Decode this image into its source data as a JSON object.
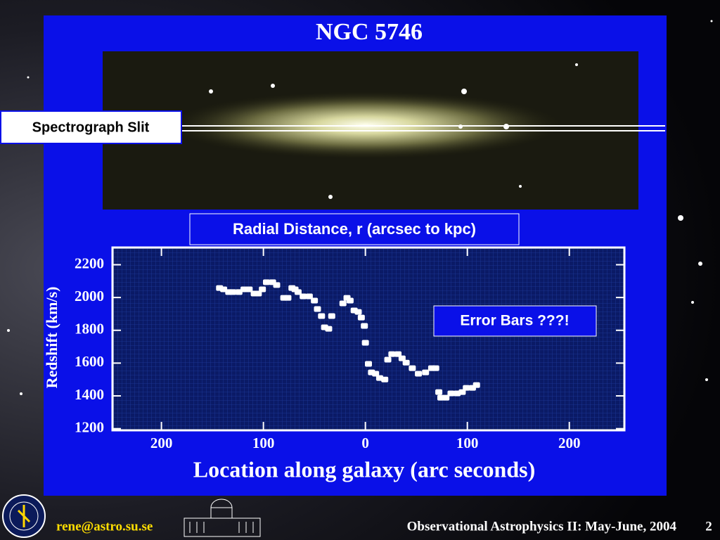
{
  "slide": {
    "title": "NGC 5746",
    "slit_label": "Spectrograph Slit",
    "radial_label": "Radial Distance, r (arcsec to kpc)",
    "annotation": "Error Bars ???!",
    "footer": {
      "email": "rene@astro.su.se",
      "course": "Observational Astrophysics II: May-June, 2004",
      "page": "2"
    }
  },
  "chart_data": {
    "type": "scatter",
    "xlabel": "Location along galaxy (arc seconds)",
    "ylabel": "Redshift (km/s)",
    "color": "#ffffff",
    "x": [
      -143,
      -139,
      -134,
      -130,
      -124,
      -119,
      -114,
      -109,
      -105,
      -101,
      -97,
      -91,
      -87,
      -80,
      -76,
      -72,
      -69,
      -66,
      -61,
      -55,
      -50,
      -47,
      -43,
      -40,
      -36,
      -33,
      -22,
      -18,
      -15,
      -11,
      -7,
      -4,
      -1,
      0,
      3,
      6,
      10,
      14,
      19,
      22,
      26,
      32,
      36,
      40,
      46,
      52,
      59,
      65,
      69,
      72,
      74,
      79,
      84,
      90,
      95,
      99,
      105,
      109
    ],
    "values": [
      2058,
      2050,
      2033,
      2033,
      2033,
      2050,
      2050,
      2024,
      2024,
      2050,
      2093,
      2093,
      2076,
      1998,
      1998,
      2058,
      2050,
      2033,
      2007,
      2007,
      1981,
      1930,
      1887,
      1818,
      1809,
      1887,
      1964,
      1998,
      1981,
      1921,
      1912,
      1878,
      1827,
      1724,
      1595,
      1543,
      1535,
      1509,
      1500,
      1621,
      1655,
      1655,
      1629,
      1603,
      1569,
      1535,
      1543,
      1569,
      1569,
      1423,
      1389,
      1389,
      1415,
      1415,
      1423,
      1449,
      1449,
      1466
    ],
    "xlim": [
      -248,
      254
    ],
    "ylim": [
      1190,
      2305
    ],
    "xticks": [
      {
        "value": -200,
        "label": "200"
      },
      {
        "value": -100,
        "label": "100"
      },
      0,
      {
        "value": 100,
        "label": "100"
      },
      {
        "value": 200,
        "label": "200"
      }
    ],
    "yticks": [
      1200,
      1400,
      1600,
      1800,
      2000,
      2200
    ]
  }
}
